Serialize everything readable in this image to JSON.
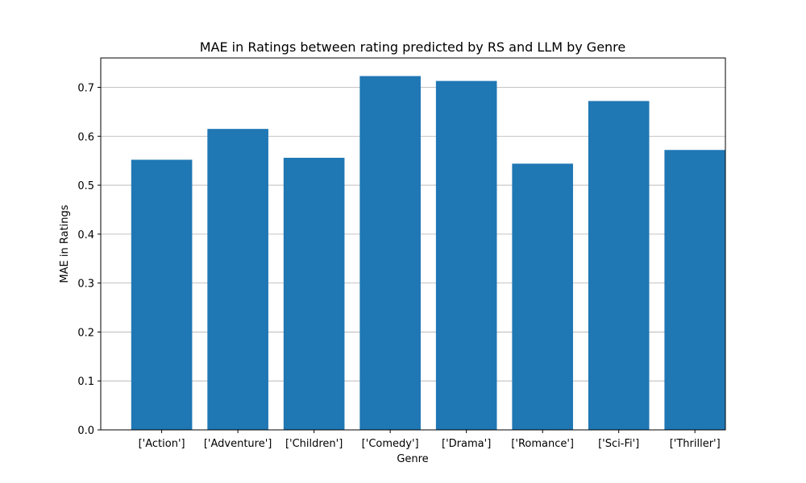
{
  "chart_data": {
    "type": "bar",
    "title": "MAE in Ratings between rating predicted by RS and LLM by Genre",
    "xlabel": "Genre",
    "ylabel": "MAE in Ratings",
    "categories": [
      "['Action']",
      "['Adventure']",
      "['Children']",
      "['Comedy']",
      "['Drama']",
      "['Romance']",
      "['Sci-Fi']",
      "['Thriller']"
    ],
    "values": [
      0.552,
      0.615,
      0.556,
      0.723,
      0.713,
      0.544,
      0.672,
      0.572
    ],
    "ylim": [
      0,
      0.76
    ],
    "yticks": [
      0.0,
      0.1,
      0.2,
      0.3,
      0.4,
      0.5,
      0.6,
      0.7
    ],
    "ytick_labels": [
      "0.0",
      "0.1",
      "0.2",
      "0.3",
      "0.4",
      "0.5",
      "0.6",
      "0.7"
    ],
    "grid": "y",
    "bar_color": "#1f77b4",
    "grid_color": "#b0b0b0"
  }
}
